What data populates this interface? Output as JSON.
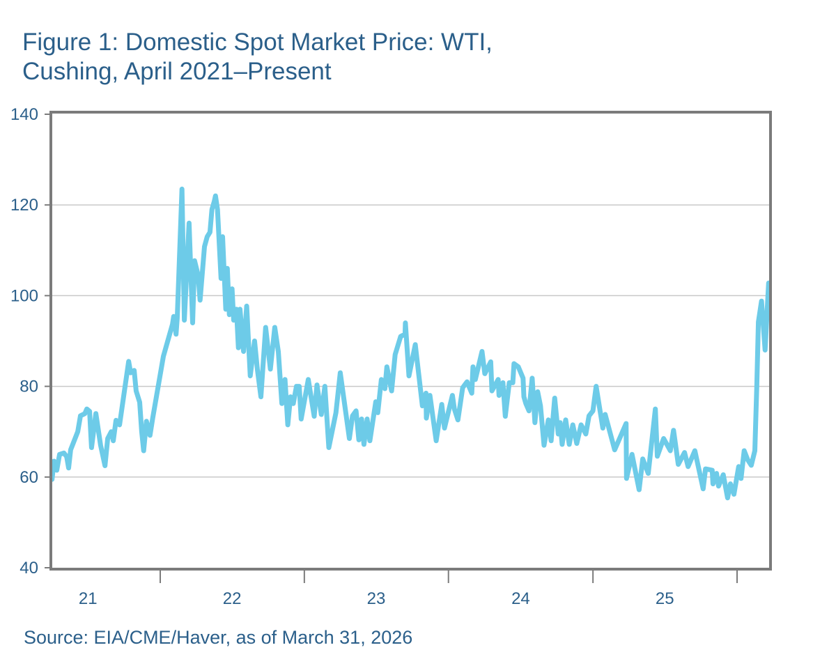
{
  "title_line1": "Figure 1: Domestic Spot Market Price: WTI,",
  "title_line2": "Cushing, April 2021–Present",
  "source": "Source: EIA/CME/Haver, as of March 31, 2026",
  "colors": {
    "line": "#6dcbe8",
    "text": "#2b5f8a",
    "frame": "#7b7b7b",
    "grid": "#c9c9c9"
  },
  "chart_data": {
    "type": "line",
    "title": "Figure 1: Domestic Spot Market Price: WTI, Cushing, April 2021–Present",
    "xlabel": "",
    "ylabel": "",
    "ylim": [
      40,
      140
    ],
    "xlim": [
      "2021-04-01",
      "2026-03-31"
    ],
    "yticks": [
      "40",
      "60",
      "80",
      "100",
      "120",
      "140"
    ],
    "xtick_labels": [
      "21",
      "22",
      "23",
      "24",
      "25"
    ],
    "grid": "horizontal",
    "legend": "none",
    "series": [
      {
        "points": [
          [
            "2021-04-02",
            59.5
          ],
          [
            "2021-04-07",
            63.5
          ],
          [
            "2021-04-14",
            61.5
          ],
          [
            "2021-04-21",
            65
          ],
          [
            "2021-05-02",
            65.3
          ],
          [
            "2021-05-09",
            64.5
          ],
          [
            "2021-05-14",
            62
          ],
          [
            "2021-05-19",
            66
          ],
          [
            "2021-06-06",
            70
          ],
          [
            "2021-06-13",
            73.5
          ],
          [
            "2021-06-24",
            74
          ],
          [
            "2021-06-29",
            75
          ],
          [
            "2021-07-06",
            74.5
          ],
          [
            "2021-07-11",
            66.5
          ],
          [
            "2021-07-22",
            74
          ],
          [
            "2021-08-03",
            67
          ],
          [
            "2021-08-14",
            62.5
          ],
          [
            "2021-08-21",
            68.5
          ],
          [
            "2021-08-30",
            70
          ],
          [
            "2021-09-04",
            68
          ],
          [
            "2021-09-11",
            72.5
          ],
          [
            "2021-09-20",
            71.5
          ],
          [
            "2021-10-13",
            85.5
          ],
          [
            "2021-10-18",
            83
          ],
          [
            "2021-10-27",
            83.5
          ],
          [
            "2021-11-01",
            79
          ],
          [
            "2021-11-10",
            76.5
          ],
          [
            "2021-11-15",
            70
          ],
          [
            "2021-11-20",
            65.8
          ],
          [
            "2021-11-27",
            72.3
          ],
          [
            "2021-12-06",
            69.2
          ],
          [
            "2021-12-13",
            73
          ],
          [
            "2022-01-09",
            86.6
          ],
          [
            "2022-01-19",
            89.7
          ],
          [
            "2022-02-01",
            93.7
          ],
          [
            "2022-02-04",
            95.4
          ],
          [
            "2022-02-10",
            91.5
          ],
          [
            "2022-02-13",
            95
          ],
          [
            "2022-02-25",
            123.5
          ],
          [
            "2022-03-03",
            94.6
          ],
          [
            "2022-03-15",
            116
          ],
          [
            "2022-03-24",
            94
          ],
          [
            "2022-03-29",
            107.7
          ],
          [
            "2022-04-07",
            104.5
          ],
          [
            "2022-04-12",
            99
          ],
          [
            "2022-04-23",
            110.8
          ],
          [
            "2022-04-30",
            113
          ],
          [
            "2022-05-07",
            114
          ],
          [
            "2022-05-12",
            119
          ],
          [
            "2022-05-18",
            120.8
          ],
          [
            "2022-05-21",
            122
          ],
          [
            "2022-05-26",
            119
          ],
          [
            "2022-06-04",
            103.8
          ],
          [
            "2022-06-08",
            113
          ],
          [
            "2022-06-16",
            97
          ],
          [
            "2022-06-20",
            106
          ],
          [
            "2022-06-25",
            95.8
          ],
          [
            "2022-07-02",
            101.5
          ],
          [
            "2022-07-06",
            94.6
          ],
          [
            "2022-07-13",
            97
          ],
          [
            "2022-07-18",
            88.5
          ],
          [
            "2022-07-22",
            97
          ],
          [
            "2022-07-31",
            87.7
          ],
          [
            "2022-08-08",
            97.7
          ],
          [
            "2022-08-17",
            82.3
          ],
          [
            "2022-08-28",
            90
          ],
          [
            "2022-09-04",
            83.8
          ],
          [
            "2022-09-13",
            77.7
          ],
          [
            "2022-09-25",
            93
          ],
          [
            "2022-10-07",
            83.8
          ],
          [
            "2022-10-18",
            93
          ],
          [
            "2022-10-27",
            87.7
          ],
          [
            "2022-11-05",
            76.2
          ],
          [
            "2022-11-13",
            81.5
          ],
          [
            "2022-11-20",
            71.5
          ],
          [
            "2022-11-27",
            77.7
          ],
          [
            "2022-12-04",
            76.2
          ],
          [
            "2022-12-12",
            80
          ],
          [
            "2022-12-19",
            80
          ],
          [
            "2022-12-24",
            72.8
          ],
          [
            "2023-01-11",
            81.5
          ],
          [
            "2023-01-26",
            73.4
          ],
          [
            "2023-02-02",
            80.3
          ],
          [
            "2023-02-13",
            73.8
          ],
          [
            "2023-02-22",
            80
          ],
          [
            "2023-03-04",
            66.5
          ],
          [
            "2023-03-22",
            74.2
          ],
          [
            "2023-04-02",
            83
          ],
          [
            "2023-04-25",
            68.5
          ],
          [
            "2023-05-03",
            73.5
          ],
          [
            "2023-05-12",
            74.6
          ],
          [
            "2023-05-19",
            68.2
          ],
          [
            "2023-05-26",
            72.8
          ],
          [
            "2023-06-01",
            67.2
          ],
          [
            "2023-06-09",
            72.8
          ],
          [
            "2023-06-16",
            68
          ],
          [
            "2023-07-01",
            76.6
          ],
          [
            "2023-07-06",
            74.2
          ],
          [
            "2023-07-15",
            81.5
          ],
          [
            "2023-07-24",
            79.5
          ],
          [
            "2023-07-29",
            84.3
          ],
          [
            "2023-08-10",
            79
          ],
          [
            "2023-08-19",
            87
          ],
          [
            "2023-09-02",
            91
          ],
          [
            "2023-09-13",
            91.5
          ],
          [
            "2023-09-14",
            94
          ],
          [
            "2023-09-23",
            82.3
          ],
          [
            "2023-10-09",
            89.2
          ],
          [
            "2023-10-27",
            75.7
          ],
          [
            "2023-11-05",
            78.5
          ],
          [
            "2023-11-06",
            73
          ],
          [
            "2023-11-15",
            78
          ],
          [
            "2023-12-01",
            68
          ],
          [
            "2023-12-15",
            76
          ],
          [
            "2023-12-22",
            70.8
          ],
          [
            "2024-01-11",
            78
          ],
          [
            "2024-01-16",
            75
          ],
          [
            "2024-01-25",
            72.6
          ],
          [
            "2024-02-06",
            79.7
          ],
          [
            "2024-02-17",
            81
          ],
          [
            "2024-02-29",
            78.5
          ],
          [
            "2024-03-03",
            84.3
          ],
          [
            "2024-03-09",
            81.5
          ],
          [
            "2024-03-26",
            87.7
          ],
          [
            "2024-04-02",
            82.8
          ],
          [
            "2024-04-17",
            85.4
          ],
          [
            "2024-04-20",
            79
          ],
          [
            "2024-05-06",
            81.5
          ],
          [
            "2024-05-08",
            78
          ],
          [
            "2024-05-18",
            80.8
          ],
          [
            "2024-05-24",
            73.4
          ],
          [
            "2024-06-03",
            80.8
          ],
          [
            "2024-06-12",
            80.8
          ],
          [
            "2024-06-15",
            85
          ],
          [
            "2024-06-26",
            84.3
          ],
          [
            "2024-07-08",
            81.8
          ],
          [
            "2024-07-10",
            77.7
          ],
          [
            "2024-07-15",
            76.2
          ],
          [
            "2024-07-23",
            74.6
          ],
          [
            "2024-07-31",
            81.8
          ],
          [
            "2024-08-07",
            72
          ],
          [
            "2024-08-14",
            78.8
          ],
          [
            "2024-08-21",
            75.7
          ],
          [
            "2024-08-30",
            67
          ],
          [
            "2024-09-10",
            72.6
          ],
          [
            "2024-09-17",
            68
          ],
          [
            "2024-09-26",
            77.4
          ],
          [
            "2024-10-05",
            69.5
          ],
          [
            "2024-10-10",
            72
          ],
          [
            "2024-10-15",
            67.2
          ],
          [
            "2024-10-24",
            72.6
          ],
          [
            "2024-11-02",
            67.2
          ],
          [
            "2024-11-11",
            71.5
          ],
          [
            "2024-11-21",
            67.4
          ],
          [
            "2024-12-02",
            71.5
          ],
          [
            "2024-12-14",
            69.5
          ],
          [
            "2024-12-22",
            73.5
          ],
          [
            "2025-01-01",
            74.6
          ],
          [
            "2025-01-09",
            80
          ],
          [
            "2025-01-26",
            70.8
          ],
          [
            "2025-02-01",
            73.8
          ],
          [
            "2025-02-25",
            66
          ],
          [
            "2025-03-26",
            71.8
          ],
          [
            "2025-03-27",
            59.7
          ],
          [
            "2025-04-10",
            65
          ],
          [
            "2025-04-28",
            57.2
          ],
          [
            "2025-05-07",
            64
          ],
          [
            "2025-05-21",
            60.8
          ],
          [
            "2025-06-08",
            75
          ],
          [
            "2025-06-13",
            64.6
          ],
          [
            "2025-06-29",
            68.5
          ],
          [
            "2025-07-16",
            65.8
          ],
          [
            "2025-07-24",
            70.3
          ],
          [
            "2025-08-05",
            62.8
          ],
          [
            "2025-08-21",
            65.4
          ],
          [
            "2025-08-30",
            62.3
          ],
          [
            "2025-09-16",
            65.8
          ],
          [
            "2025-10-07",
            57.4
          ],
          [
            "2025-10-13",
            61.8
          ],
          [
            "2025-10-30",
            61.5
          ],
          [
            "2025-11-01",
            58.5
          ],
          [
            "2025-11-10",
            60.8
          ],
          [
            "2025-11-15",
            58
          ],
          [
            "2025-11-27",
            60.5
          ],
          [
            "2025-12-08",
            55.4
          ],
          [
            "2025-12-15",
            58.5
          ],
          [
            "2025-12-24",
            56.2
          ],
          [
            "2026-01-05",
            62.3
          ],
          [
            "2026-01-11",
            59.7
          ],
          [
            "2026-01-19",
            65.8
          ],
          [
            "2026-01-28",
            63.8
          ],
          [
            "2026-02-06",
            62.6
          ],
          [
            "2026-02-15",
            65.8
          ],
          [
            "2026-02-20",
            80
          ],
          [
            "2026-02-24",
            94.2
          ],
          [
            "2026-03-04",
            98.8
          ],
          [
            "2026-03-13",
            88
          ],
          [
            "2026-03-22",
            102.8
          ]
        ]
      }
    ]
  }
}
